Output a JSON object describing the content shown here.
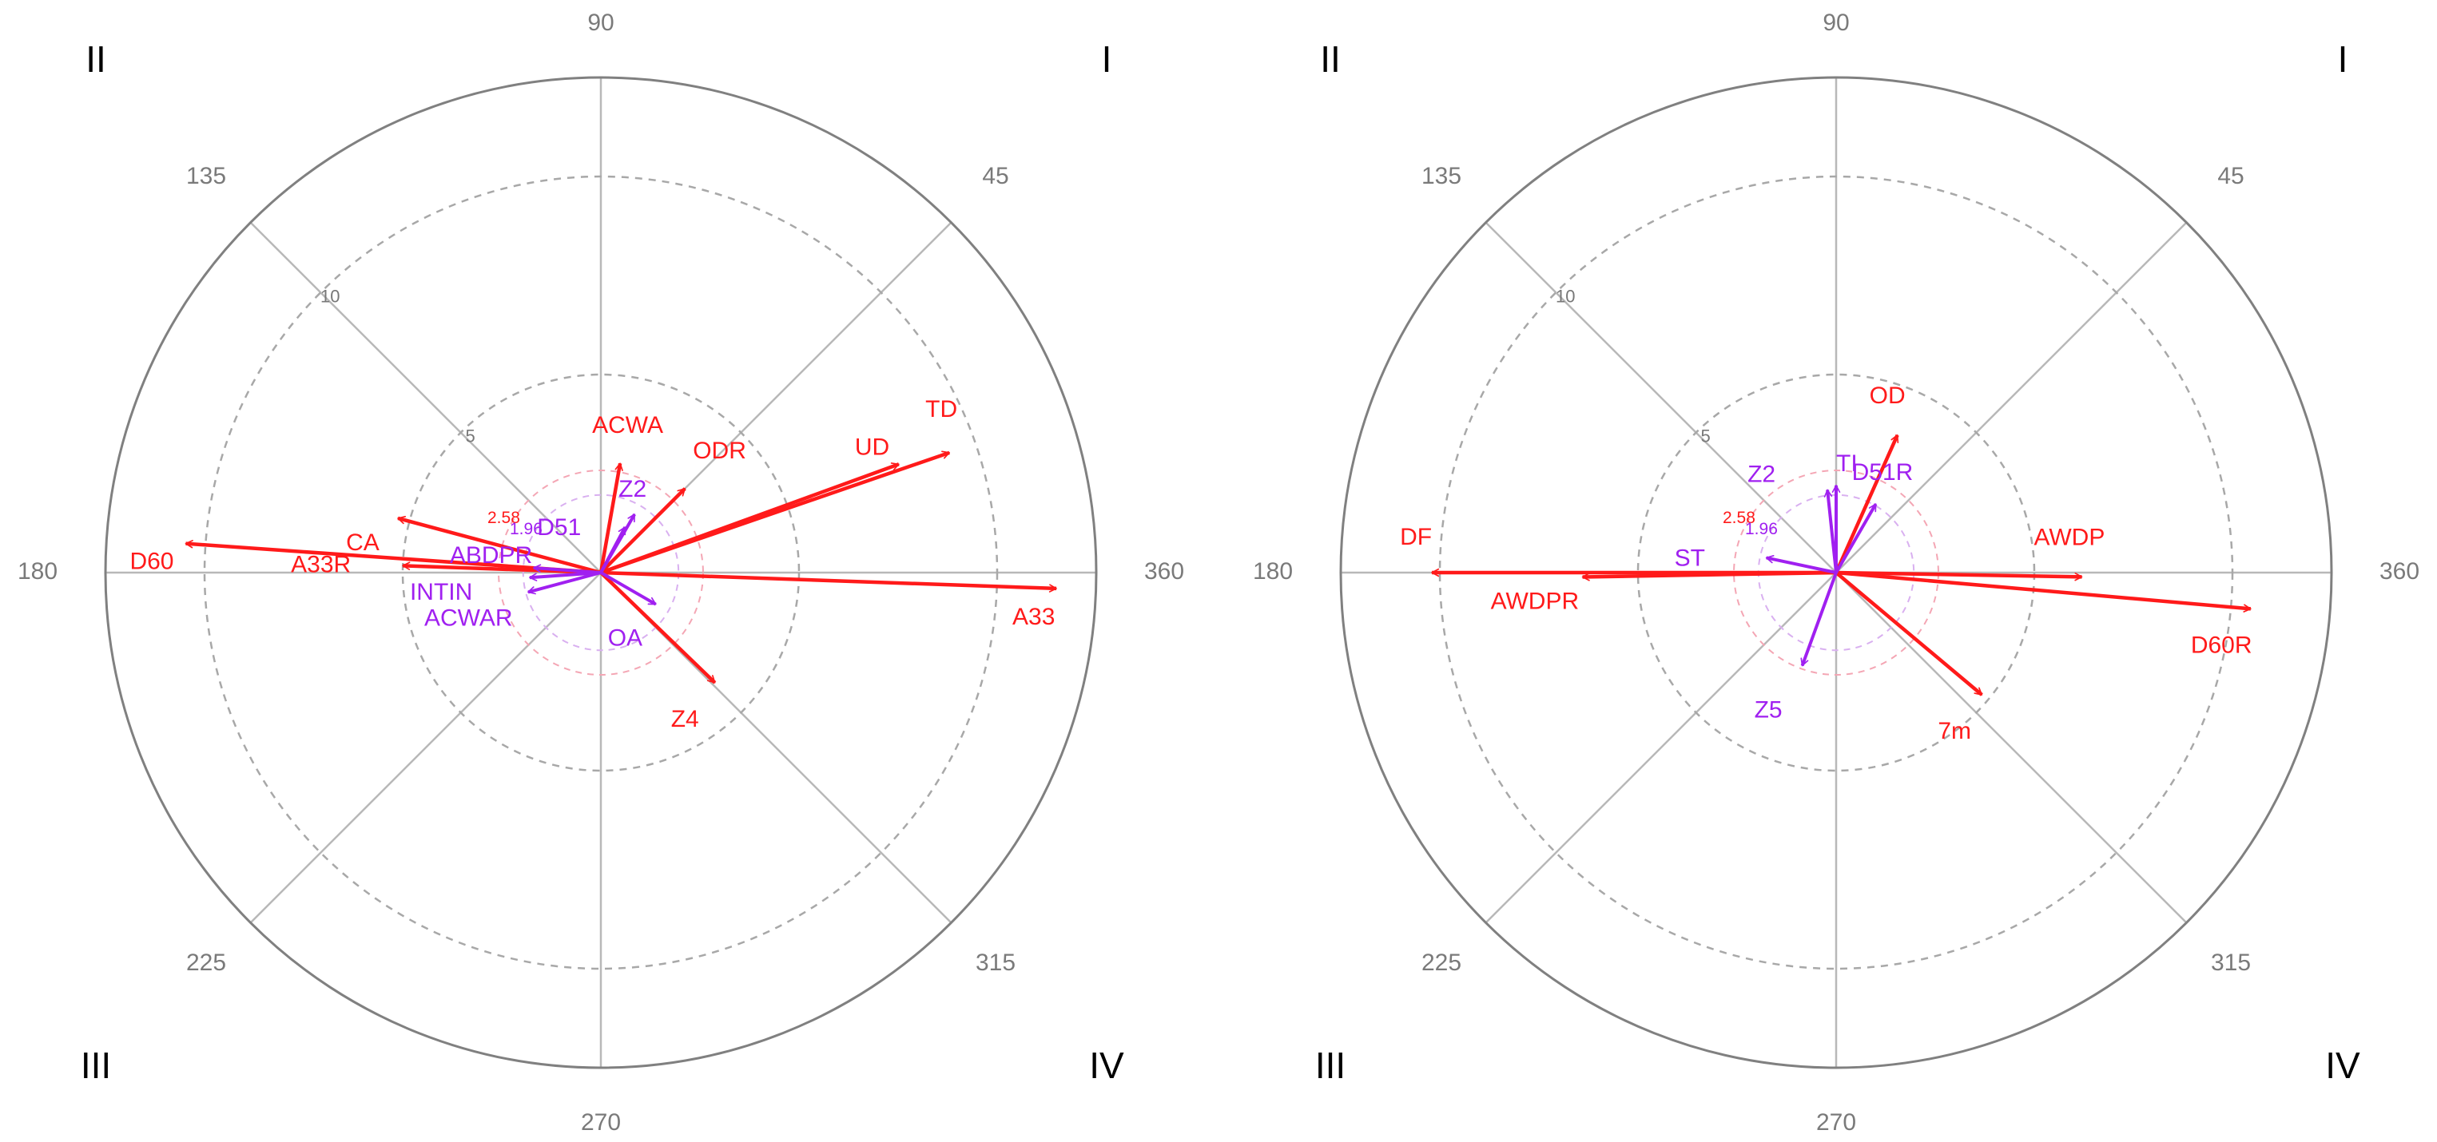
{
  "colors": {
    "red": "#ff1a1a",
    "purple": "#a020f0",
    "spoke": "#b8b8b8",
    "ring_dashed": "#a8a8a8",
    "ring_sig": "#f4a6b4",
    "outer_ring": "#808080"
  },
  "chart_data": [
    {
      "type": "polar-vector",
      "rmax": 12.5,
      "rings_dashed": [
        5,
        10
      ],
      "ring_labels": [
        {
          "text": "5",
          "value": 5
        },
        {
          "text": "10",
          "value": 10
        }
      ],
      "sig_rings": [
        {
          "text": "2.58",
          "value": 2.58,
          "color": "#ff1a1a"
        },
        {
          "text": "1.96",
          "value": 1.96,
          "color": "#a020f0"
        }
      ],
      "angle_labels": [
        "90",
        "45",
        "360",
        "315",
        "270",
        "225",
        "180",
        "135"
      ],
      "quadrant_labels": [
        "I",
        "II",
        "III",
        "IV"
      ],
      "vectors": [
        {
          "label": "A33",
          "angle": 358,
          "length": 11.5,
          "color": "red"
        },
        {
          "label": "TD",
          "angle": 19,
          "length": 9.3,
          "color": "red"
        },
        {
          "label": "UD",
          "angle": 20,
          "length": 8.0,
          "color": "red"
        },
        {
          "label": "ODR",
          "angle": 45,
          "length": 3.0,
          "color": "red"
        },
        {
          "label": "ACWA",
          "angle": 80,
          "length": 2.8,
          "color": "red"
        },
        {
          "label": "A33R",
          "angle": 178,
          "length": 5.0,
          "color": "red"
        },
        {
          "label": "D60",
          "angle": 176,
          "length": 10.5,
          "color": "red"
        },
        {
          "label": "CA",
          "angle": 165,
          "length": 5.3,
          "color": "red"
        },
        {
          "label": "Z4",
          "angle": 316,
          "length": 4.0,
          "color": "red"
        },
        {
          "label": "Z2",
          "angle": 60,
          "length": 1.7,
          "color": "purple"
        },
        {
          "label": "D51",
          "angle": 62,
          "length": 1.3,
          "color": "purple"
        },
        {
          "label": "ABDPR",
          "angle": 176,
          "length": 1.7,
          "color": "purple"
        },
        {
          "label": "INTIN",
          "angle": 184,
          "length": 1.8,
          "color": "purple"
        },
        {
          "label": "ACWAR",
          "angle": 195,
          "length": 1.9,
          "color": "purple"
        },
        {
          "label": "OA",
          "angle": 330,
          "length": 1.6,
          "color": "purple"
        }
      ]
    },
    {
      "type": "polar-vector",
      "rmax": 12.5,
      "rings_dashed": [
        5,
        10
      ],
      "ring_labels": [
        {
          "text": "5",
          "value": 5
        },
        {
          "text": "10",
          "value": 10
        }
      ],
      "sig_rings": [
        {
          "text": "2.58",
          "value": 2.58,
          "color": "#ff1a1a"
        },
        {
          "text": "1.96",
          "value": 1.96,
          "color": "#a020f0"
        }
      ],
      "angle_labels": [
        "90",
        "45",
        "360",
        "315",
        "270",
        "225",
        "180",
        "135"
      ],
      "quadrant_labels": [
        "I",
        "II",
        "III",
        "IV"
      ],
      "vectors": [
        {
          "label": "OD",
          "angle": 66,
          "length": 3.8,
          "color": "red"
        },
        {
          "label": "AWDP",
          "angle": 359,
          "length": 6.2,
          "color": "red"
        },
        {
          "label": "D60R",
          "angle": 355,
          "length": 10.5,
          "color": "red"
        },
        {
          "label": "7m",
          "angle": 320,
          "length": 4.8,
          "color": "red"
        },
        {
          "label": "DF",
          "angle": 180,
          "length": 10.2,
          "color": "red"
        },
        {
          "label": "AWDPR",
          "angle": 181,
          "length": 6.4,
          "color": "red"
        },
        {
          "label": "TI",
          "angle": 90,
          "length": 2.2,
          "color": "purple"
        },
        {
          "label": "D51R",
          "angle": 60,
          "length": 2.0,
          "color": "purple"
        },
        {
          "label": "Z2",
          "angle": 96,
          "length": 2.1,
          "color": "purple"
        },
        {
          "label": "ST",
          "angle": 168,
          "length": 1.8,
          "color": "purple"
        },
        {
          "label": "Z5",
          "angle": 250,
          "length": 2.5,
          "color": "purple"
        }
      ]
    }
  ]
}
